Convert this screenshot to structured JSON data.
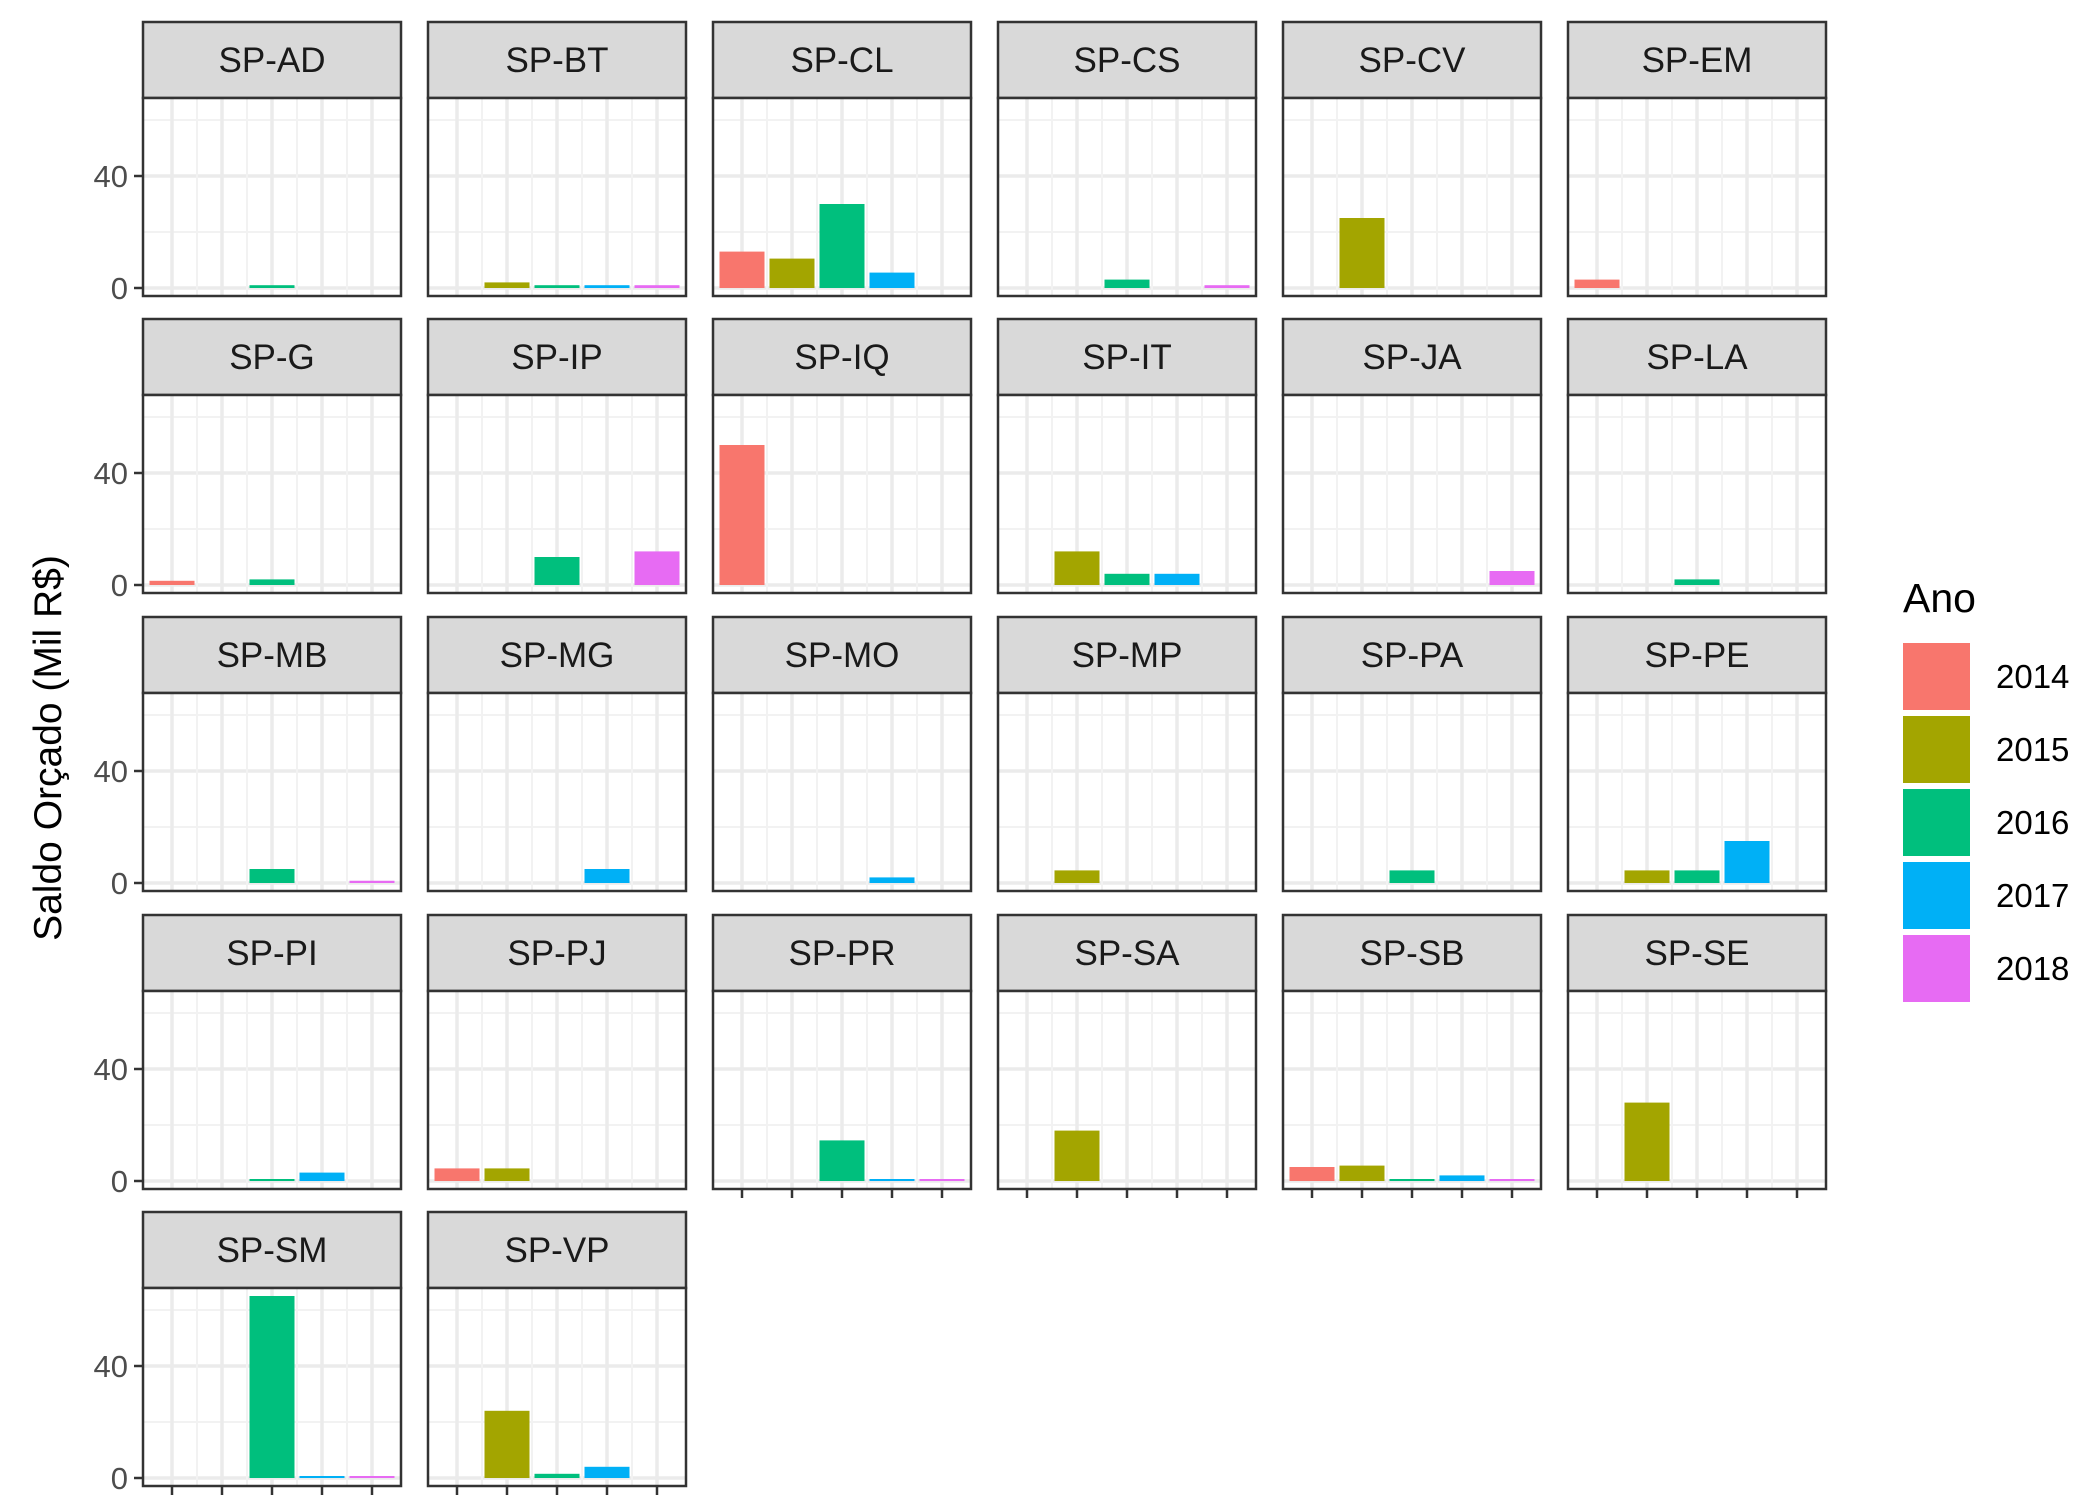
{
  "chart_data": {
    "type": "bar",
    "facet_by": "unit",
    "ylabel": "Saldo Orçado (Mil R$)",
    "ylim": [
      0,
      65
    ],
    "yticks": [
      0,
      40
    ],
    "grid": true,
    "legend": {
      "title": "Ano",
      "position": "right",
      "items": [
        {
          "label": "2014",
          "color": "#F8766D"
        },
        {
          "label": "2015",
          "color": "#A3A500"
        },
        {
          "label": "2016",
          "color": "#00BF7D"
        },
        {
          "label": "2017",
          "color": "#00B0F6"
        },
        {
          "label": "2018",
          "color": "#E76BF3"
        }
      ]
    },
    "categories": [
      "2014",
      "2015",
      "2016",
      "2017",
      "2018"
    ],
    "panels": [
      {
        "name": "SP-AD",
        "values": [
          null,
          null,
          1,
          null,
          null
        ]
      },
      {
        "name": "SP-BT",
        "values": [
          null,
          2,
          1,
          1,
          1
        ]
      },
      {
        "name": "SP-CL",
        "values": [
          13,
          10.5,
          30,
          5.5,
          null
        ]
      },
      {
        "name": "SP-CS",
        "values": [
          null,
          null,
          3,
          null,
          1
        ]
      },
      {
        "name": "SP-CV",
        "values": [
          null,
          25,
          null,
          null,
          null
        ]
      },
      {
        "name": "SP-EM",
        "values": [
          3,
          null,
          null,
          null,
          null
        ]
      },
      {
        "name": "SP-G",
        "values": [
          1.5,
          null,
          2,
          null,
          null
        ]
      },
      {
        "name": "SP-IP",
        "values": [
          null,
          null,
          10,
          null,
          12
        ]
      },
      {
        "name": "SP-IQ",
        "values": [
          50,
          null,
          null,
          null,
          null
        ]
      },
      {
        "name": "SP-IT",
        "values": [
          null,
          12,
          4,
          4,
          null
        ]
      },
      {
        "name": "SP-JA",
        "values": [
          null,
          null,
          null,
          null,
          5
        ]
      },
      {
        "name": "SP-LA",
        "values": [
          null,
          null,
          2,
          null,
          null
        ]
      },
      {
        "name": "SP-MB",
        "values": [
          null,
          null,
          5,
          null,
          0.8
        ]
      },
      {
        "name": "SP-MG",
        "values": [
          null,
          null,
          null,
          5,
          null
        ]
      },
      {
        "name": "SP-MO",
        "values": [
          null,
          null,
          null,
          2,
          null
        ]
      },
      {
        "name": "SP-MP",
        "values": [
          null,
          4.5,
          null,
          null,
          null
        ]
      },
      {
        "name": "SP-PA",
        "values": [
          null,
          null,
          4.5,
          null,
          null
        ]
      },
      {
        "name": "SP-PE",
        "values": [
          null,
          4.5,
          4.5,
          15,
          null
        ]
      },
      {
        "name": "SP-PI",
        "values": [
          null,
          null,
          0.5,
          3,
          null
        ]
      },
      {
        "name": "SP-PJ",
        "values": [
          4.5,
          4.5,
          null,
          null,
          null
        ]
      },
      {
        "name": "SP-PR",
        "values": [
          null,
          null,
          14.5,
          0.5,
          0.5
        ]
      },
      {
        "name": "SP-SA",
        "values": [
          null,
          18,
          null,
          null,
          null
        ]
      },
      {
        "name": "SP-SB",
        "values": [
          5,
          5.5,
          0.5,
          2,
          0.5
        ]
      },
      {
        "name": "SP-SE",
        "values": [
          null,
          28,
          null,
          null,
          null
        ]
      },
      {
        "name": "SP-SM",
        "values": [
          null,
          null,
          65,
          0.5,
          0.5
        ]
      },
      {
        "name": "SP-VP",
        "values": [
          null,
          24,
          1.5,
          4,
          null
        ]
      }
    ]
  }
}
